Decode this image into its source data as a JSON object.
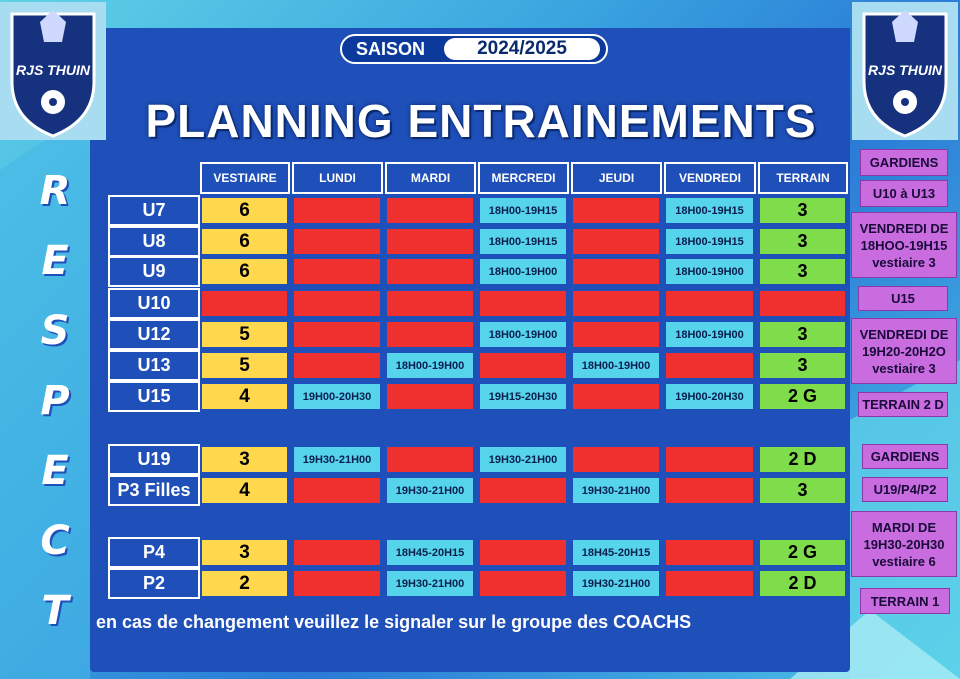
{
  "season": {
    "label": "SAISON",
    "value": "2024/2025"
  },
  "title": "PLANNING ENTRAINEMENTS",
  "logo_text": "RJS THUIN",
  "respect": [
    "R",
    "E",
    "S",
    "P",
    "E",
    "C",
    "T"
  ],
  "headers": [
    "VESTIAIRE",
    "LUNDI",
    "MARDI",
    "MERCREDI",
    "JEUDI",
    "VENDREDI",
    "TERRAIN"
  ],
  "rows": [
    {
      "team": "U7",
      "vestiaire": "6",
      "lundi": "",
      "mardi": "",
      "mercredi": "18H00-19H15",
      "jeudi": "",
      "vendredi": "18H00-19H15",
      "terrain": "3"
    },
    {
      "team": "U8",
      "vestiaire": "6",
      "lundi": "",
      "mardi": "",
      "mercredi": "18H00-19H15",
      "jeudi": "",
      "vendredi": "18H00-19H15",
      "terrain": "3"
    },
    {
      "team": "U9",
      "vestiaire": "6",
      "lundi": "",
      "mardi": "",
      "mercredi": "18H00-19H00",
      "jeudi": "",
      "vendredi": "18H00-19H00",
      "terrain": "3"
    },
    {
      "team": "U10",
      "vestiaire": "",
      "lundi": "",
      "mardi": "",
      "mercredi": "",
      "jeudi": "",
      "vendredi": "",
      "terrain": ""
    },
    {
      "team": "U12",
      "vestiaire": "5",
      "lundi": "",
      "mardi": "",
      "mercredi": "18H00-19H00",
      "jeudi": "",
      "vendredi": "18H00-19H00",
      "terrain": "3"
    },
    {
      "team": "U13",
      "vestiaire": "5",
      "lundi": "",
      "mardi": "18H00-19H00",
      "mercredi": "",
      "jeudi": "18H00-19H00",
      "vendredi": "",
      "terrain": "3"
    },
    {
      "team": "U15",
      "vestiaire": "4",
      "lundi": "19H00-20H30",
      "mardi": "",
      "mercredi": "19H15-20H30",
      "jeudi": "",
      "vendredi": "19H00-20H30",
      "terrain": "2 G"
    },
    {
      "team": "U19",
      "vestiaire": "3",
      "lundi": "19H30-21H00",
      "mardi": "",
      "mercredi": "19H30-21H00",
      "jeudi": "",
      "vendredi": "",
      "terrain": "2 D"
    },
    {
      "team": "P3  Filles",
      "vestiaire": "4",
      "lundi": "",
      "mardi": "19H30-21H00",
      "mercredi": "",
      "jeudi": "19H30-21H00",
      "vendredi": "",
      "terrain": "3"
    },
    {
      "team": "P4",
      "vestiaire": "3",
      "lundi": "",
      "mardi": "18H45-20H15",
      "mercredi": "",
      "jeudi": "18H45-20H15",
      "vendredi": "",
      "terrain": "2 G"
    },
    {
      "team": "P2",
      "vestiaire": "2",
      "lundi": "",
      "mardi": "19H30-21H00",
      "mercredi": "",
      "jeudi": "19H30-21H00",
      "vendredi": "",
      "terrain": "2 D"
    }
  ],
  "notes": [
    {
      "lines": [
        "GARDIENS"
      ]
    },
    {
      "lines": [
        "U10 à U13"
      ]
    },
    {
      "lines": [
        "VENDREDI DE",
        "18HOO-19H15",
        "vestiaire 3"
      ]
    },
    {
      "lines": [
        "U15"
      ]
    },
    {
      "lines": [
        "VENDREDI DE",
        "19H20-20H2O",
        "vestiaire 3"
      ]
    },
    {
      "lines": [
        "TERRAIN 2 D"
      ]
    },
    {
      "lines": [
        "GARDIENS"
      ]
    },
    {
      "lines": [
        "U19/P4/P2"
      ]
    },
    {
      "lines": [
        "MARDI DE",
        "19H30-20H30",
        "vestiaire 6"
      ]
    },
    {
      "lines": [
        "TERRAIN 1"
      ]
    }
  ],
  "footer": "en cas de changement veuillez le signaler sur le groupe des COACHS",
  "colors": {
    "panel": "#1f4fb8",
    "vestiaire": "#ffd84d",
    "empty": "#f0302f",
    "slot": "#55d4ec",
    "terrain": "#7fdc4b",
    "note": "#c86ce0"
  }
}
